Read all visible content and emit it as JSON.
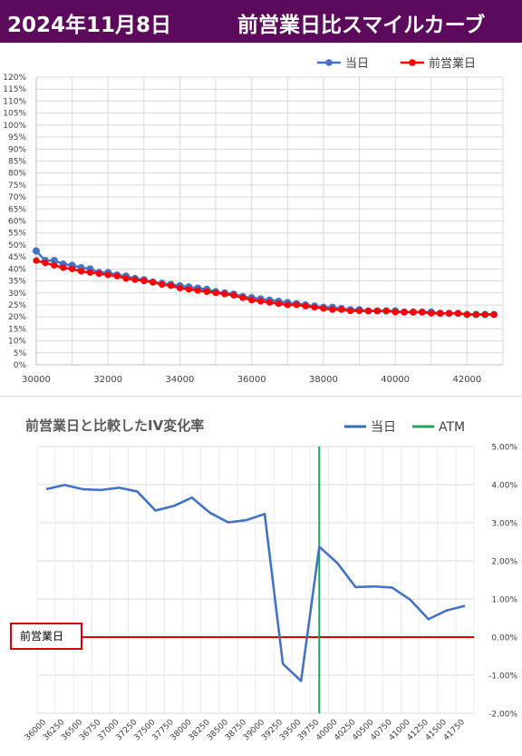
{
  "header": {
    "date": "2024年11月8日",
    "title": "前営業日比スマイルカーブ"
  },
  "chart_data": [
    {
      "type": "line",
      "title": "",
      "x": [
        30000,
        30250,
        30500,
        30750,
        31000,
        31250,
        31500,
        31750,
        32000,
        32250,
        32500,
        32750,
        33000,
        33250,
        33500,
        33750,
        34000,
        34250,
        34500,
        34750,
        35000,
        35250,
        35500,
        35750,
        36000,
        36250,
        36500,
        36750,
        37000,
        37250,
        37500,
        37750,
        38000,
        38250,
        38500,
        38750,
        39000,
        39250,
        39500,
        39750,
        40000,
        40250,
        40500,
        40750,
        41000,
        41250,
        41500,
        41750,
        42000,
        42250,
        42500,
        42750
      ],
      "series": [
        {
          "name": "当日",
          "color": "#4472c4",
          "values": [
            47.5,
            43.5,
            43.5,
            42.0,
            41.5,
            40.5,
            40.0,
            38.5,
            38.5,
            37.5,
            37.0,
            36.0,
            35.5,
            34.5,
            34.0,
            33.5,
            33.0,
            32.5,
            32.0,
            31.5,
            30.5,
            30.0,
            29.5,
            28.5,
            28.0,
            27.5,
            27.0,
            26.5,
            26.0,
            25.5,
            25.0,
            24.5,
            24.0,
            24.0,
            23.5,
            23.0,
            23.0,
            22.5,
            22.5,
            22.5,
            22.5,
            22.0,
            22.0,
            22.0,
            22.0,
            21.5,
            21.5,
            21.5,
            21.0,
            21.0,
            21.0,
            21.0
          ]
        },
        {
          "name": "前営業日",
          "color": "#ff0000",
          "values": [
            43.5,
            42.5,
            41.5,
            40.5,
            40.0,
            39.0,
            38.5,
            38.0,
            37.5,
            37.0,
            36.0,
            35.5,
            35.0,
            34.5,
            33.5,
            33.0,
            32.0,
            31.5,
            31.0,
            30.5,
            30.0,
            29.5,
            29.0,
            28.0,
            27.0,
            26.5,
            26.0,
            25.5,
            25.0,
            25.0,
            24.5,
            24.0,
            23.5,
            23.0,
            23.0,
            22.5,
            22.5,
            22.5,
            22.5,
            22.5,
            22.0,
            22.0,
            22.0,
            22.0,
            21.5,
            21.5,
            21.5,
            21.5,
            21.0,
            21.0,
            21.0,
            21.0
          ]
        }
      ],
      "xlim": [
        30000,
        43000
      ],
      "ylim": [
        0,
        120
      ],
      "xticks": [
        "30000",
        "32000",
        "34000",
        "36000",
        "38000",
        "40000",
        "42000"
      ],
      "yticks": [
        "0%",
        "5%",
        "10%",
        "15%",
        "20%",
        "25%",
        "30%",
        "35%",
        "40%",
        "45%",
        "50%",
        "55%",
        "60%",
        "65%",
        "70%",
        "75%",
        "80%",
        "85%",
        "90%",
        "95%",
        "100%",
        "105%",
        "110%",
        "115%",
        "120%"
      ],
      "grid": true,
      "legend": "top-right"
    },
    {
      "type": "line",
      "title": "前営業日と比較したIV変化率",
      "categories": [
        "36000",
        "36250",
        "36500",
        "36750",
        "37000",
        "37250",
        "37500",
        "37750",
        "38000",
        "38250",
        "38500",
        "38750",
        "39000",
        "39250",
        "39500",
        "39750",
        "40000",
        "40250",
        "40500",
        "40750",
        "41000",
        "41250",
        "41500",
        "41750"
      ],
      "series": [
        {
          "name": "当日",
          "color": "#2e6fb5",
          "values": [
            3.88,
            3.99,
            3.88,
            3.86,
            3.92,
            3.82,
            3.32,
            3.44,
            3.66,
            3.26,
            3.01,
            3.07,
            3.23,
            -0.7,
            -1.15,
            2.37,
            1.94,
            1.31,
            1.33,
            1.3,
            0.98,
            0.47,
            0.7,
            0.82
          ]
        }
      ],
      "atm": {
        "name": "ATM",
        "color": "#1fa35a",
        "at": "39750"
      },
      "reference": {
        "label": "前営業日",
        "value": 0,
        "color": "#e00000"
      },
      "ylim": [
        -2,
        5
      ],
      "yticks": [
        "-2.00%",
        "-1.00%",
        "0.00%",
        "1.00%",
        "2.00%",
        "3.00%",
        "4.00%",
        "5.00%"
      ],
      "grid": true,
      "legend": "top-right"
    }
  ]
}
